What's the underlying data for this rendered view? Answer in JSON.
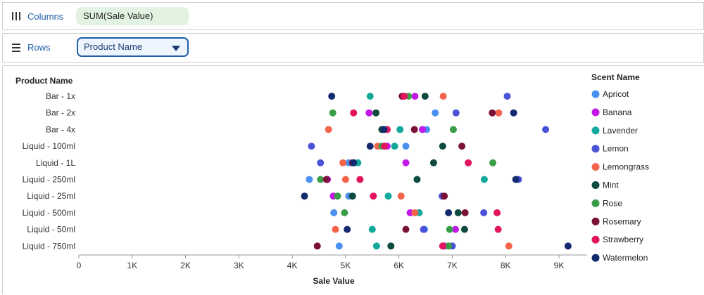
{
  "shelves": {
    "columns_label": "Columns",
    "columns_field": "SUM(Sale Value)",
    "rows_label": "Rows",
    "rows_field": "Product Name"
  },
  "colors": {
    "Apricot": "#4a90f0",
    "Banana": "#c218e8",
    "Lavender": "#14a89c",
    "Lemon": "#4a52d8",
    "Lemongrass": "#f4644a",
    "Mint": "#0e4a40",
    "Rose": "#3a9e48",
    "Rosemary": "#7a1236",
    "Strawberry": "#e2155e",
    "Watermelon": "#132a6e"
  },
  "chart_data": {
    "type": "scatter",
    "xlabel": "Sale Value",
    "ylabel": "Product Name",
    "xlim": [
      0,
      9500
    ],
    "xticks": [
      {
        "value": 0,
        "label": "0"
      },
      {
        "value": 1000,
        "label": "1K"
      },
      {
        "value": 2000,
        "label": "2K"
      },
      {
        "value": 3000,
        "label": "3K"
      },
      {
        "value": 4000,
        "label": "4K"
      },
      {
        "value": 5000,
        "label": "5K"
      },
      {
        "value": 6000,
        "label": "6K"
      },
      {
        "value": 7000,
        "label": "7K"
      },
      {
        "value": 8000,
        "label": "8K"
      },
      {
        "value": 9000,
        "label": "9K"
      }
    ],
    "categories": [
      "Bar - 1x",
      "Bar - 2x",
      "Bar - 4x",
      "Liquid - 100ml",
      "Liquid - 1L",
      "Liquid - 250ml",
      "Liquid - 25ml",
      "Liquid - 500ml",
      "Liquid - 50ml",
      "Liquid - 750ml"
    ],
    "legend_title": "Scent Name",
    "legend_position": "right",
    "series": [
      {
        "name": "Apricot",
        "values": [
          null,
          6680,
          6520,
          6130,
          5060,
          4320,
          5060,
          4780,
          6480,
          4880
        ]
      },
      {
        "name": "Banana",
        "values": [
          6300,
          5440,
          6440,
          5780,
          6130,
          4660,
          4770,
          6210,
          7060,
          6850
        ]
      },
      {
        "name": "Lavender",
        "values": [
          5460,
          null,
          6020,
          5920,
          5230,
          7600,
          5800,
          6380,
          5500,
          5580
        ]
      },
      {
        "name": "Lemon",
        "values": [
          8030,
          7070,
          8750,
          4360,
          4530,
          8240,
          6810,
          7590,
          6460,
          7000
        ]
      },
      {
        "name": "Lemongrass",
        "values": [
          6830,
          7870,
          4680,
          5600,
          4950,
          5000,
          6040,
          6300,
          4810,
          8060
        ]
      },
      {
        "name": "Mint",
        "values": [
          6490,
          5570,
          5680,
          6820,
          6650,
          6340,
          5130,
          7110,
          7230,
          5850
        ]
      },
      {
        "name": "Rose",
        "values": [
          6180,
          4760,
          7020,
          5680,
          7760,
          4530,
          4850,
          4980,
          6950,
          6930
        ]
      },
      {
        "name": "Rosemary",
        "values": [
          6060,
          7750,
          6290,
          7180,
          5130,
          4640,
          6850,
          7240,
          6130,
          4470
        ]
      },
      {
        "name": "Strawberry",
        "values": [
          6100,
          5150,
          5780,
          5730,
          7300,
          5270,
          5520,
          7840,
          7860,
          6820
        ]
      },
      {
        "name": "Watermelon",
        "values": [
          4740,
          8150,
          5720,
          5460,
          5150,
          8190,
          4230,
          6930,
          5030,
          9170
        ]
      }
    ]
  }
}
